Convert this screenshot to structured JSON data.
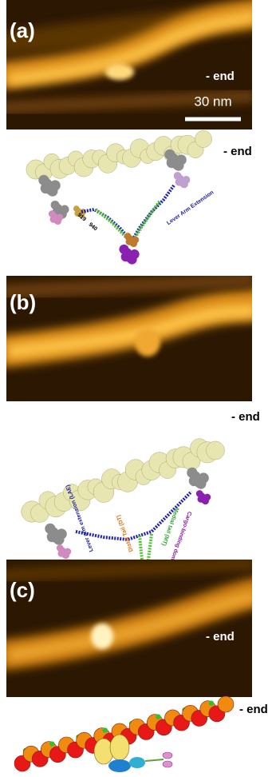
{
  "panels": [
    {
      "label": "(a)",
      "afm": {
        "end_label": "- end",
        "scale_bar": "30 nm"
      },
      "model": {
        "end_label": "- end",
        "labels": [
          "Lever Arm Extension",
          "940",
          "919"
        ]
      }
    },
    {
      "label": "(b)",
      "afm": {},
      "model": {
        "end_label": "- end",
        "labels": [
          "Cargo-binding domain (CBD)",
          "Medial tail (MT)",
          "Distal Tail (DT)",
          "Lever arm extension (LAE)"
        ]
      }
    },
    {
      "label": "(c)",
      "afm": {
        "end_label": "- end"
      },
      "model": {
        "end_label": "- end"
      }
    }
  ]
}
